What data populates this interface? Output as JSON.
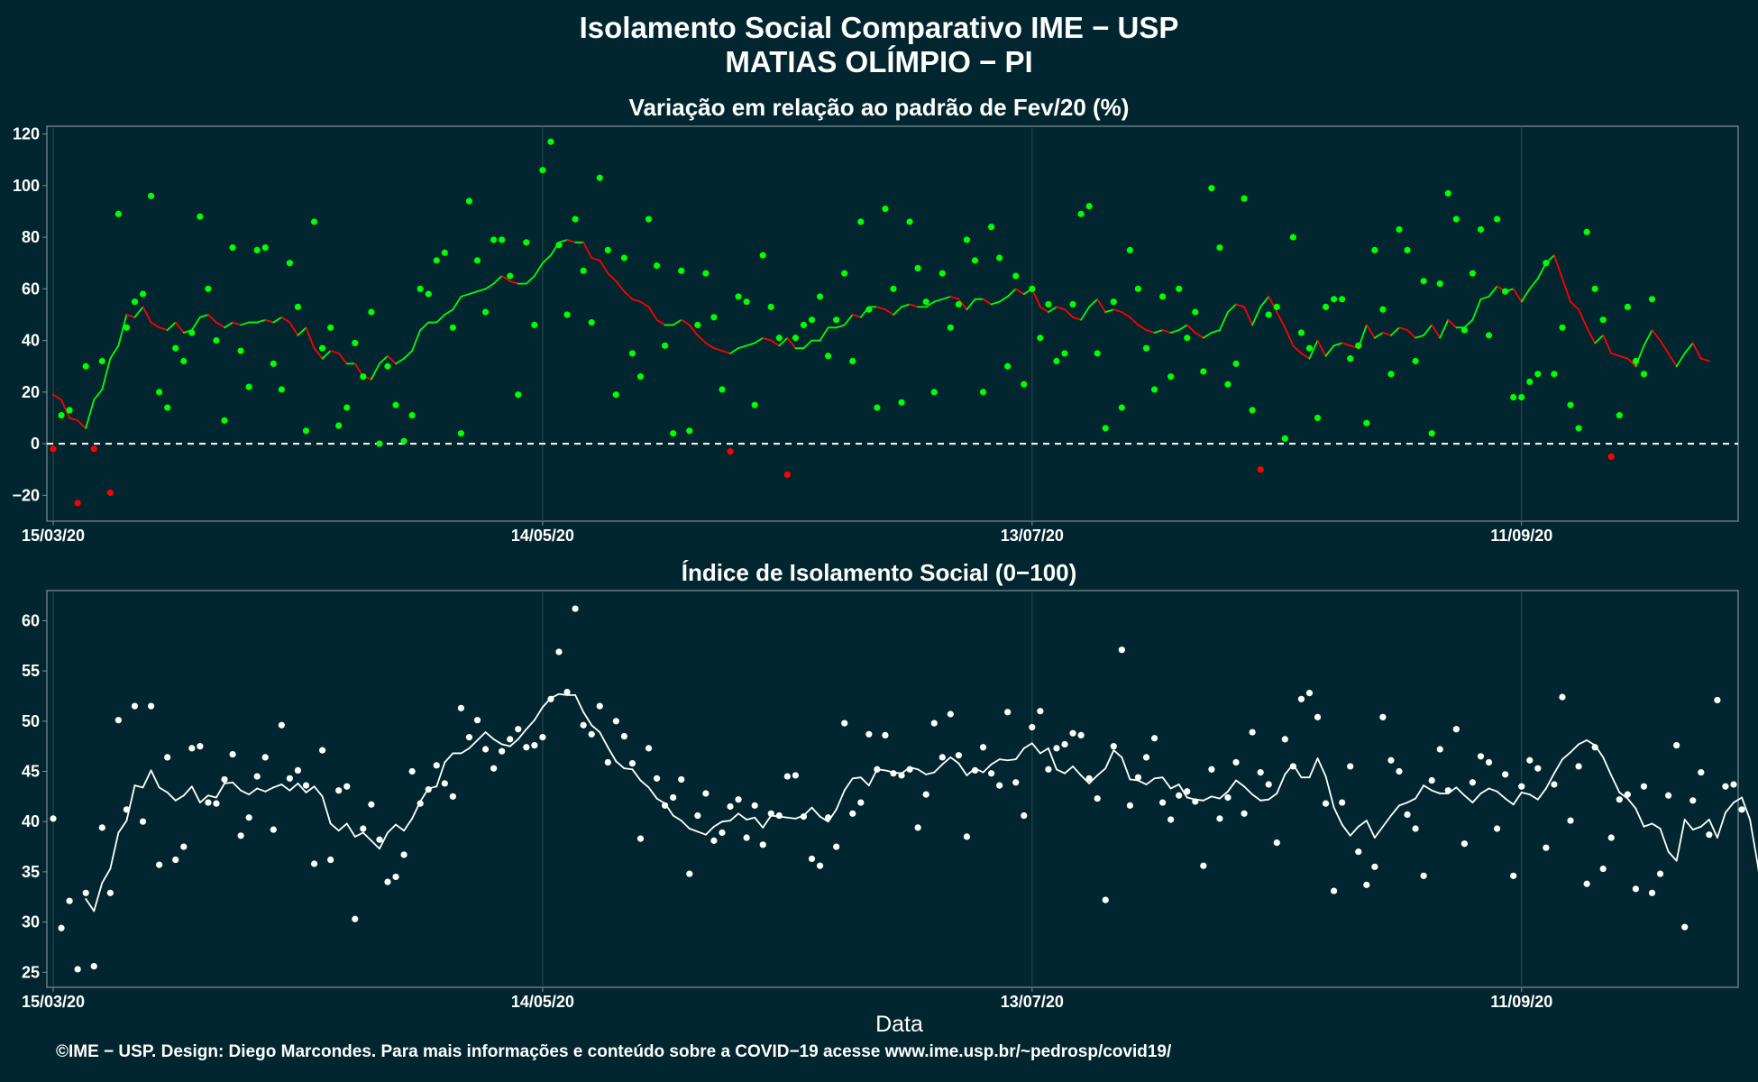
{
  "title_line1": "Isolamento Social Comparativo IME − USP",
  "title_line2": "MATIAS OLÍMPIO − PI",
  "footer": "©IME − USP. Design: Diego Marcondes. Para mais informações e conteúdo sobre a COVID−19 acesse www.ime.usp.br/~pedrosp/covid19/",
  "xlabel": "Data",
  "colors": {
    "background": "#02262f",
    "positive": "#00ff00",
    "negative": "#ff0000",
    "line_white": "#ffffff",
    "grid": "#2a4a52"
  },
  "chart_data": [
    {
      "type": "scatter",
      "title": "Variação em relação ao padrão de Fev/20 (%)",
      "x_tick_labels": [
        "15/03/20",
        "14/05/20",
        "13/07/20",
        "11/09/20"
      ],
      "x_range_days": [
        0,
        206
      ],
      "ylim": [
        -30,
        123
      ],
      "y_ticks": [
        -20,
        0,
        20,
        40,
        60,
        80,
        100,
        120
      ],
      "reference_line": 0,
      "grid": true,
      "series": [
        {
          "label": "daily",
          "values": [
            -2,
            11,
            13,
            -23,
            30,
            -2,
            32,
            -19,
            89,
            45,
            55,
            58,
            96,
            20,
            14,
            37,
            32,
            43,
            88,
            60,
            40,
            9,
            76,
            36,
            22,
            75,
            76,
            31,
            21,
            70,
            53,
            5,
            86,
            37,
            45,
            7,
            14,
            39,
            26,
            51,
            0,
            30,
            15,
            1,
            11,
            60,
            58,
            71,
            74,
            45,
            4,
            94,
            71,
            51,
            79,
            79,
            65,
            19,
            78,
            46,
            106,
            117,
            77,
            50,
            87,
            67,
            47,
            103,
            75,
            19,
            72,
            35,
            26,
            87,
            69,
            38,
            4,
            67,
            5,
            46,
            66,
            49,
            21,
            -3,
            57,
            55,
            15,
            73,
            53,
            41,
            -12,
            41,
            46,
            48,
            57,
            34,
            48,
            66,
            32,
            86,
            52,
            14,
            91,
            60,
            16,
            86,
            68,
            55,
            20,
            66,
            45,
            54,
            79,
            71,
            20,
            84,
            72,
            30,
            65,
            23,
            60,
            41,
            54,
            32,
            35,
            54,
            89,
            92,
            35,
            6,
            55,
            14,
            75,
            60,
            37,
            21,
            57,
            26,
            60,
            41,
            51,
            28,
            99,
            76,
            23,
            31,
            95,
            13,
            -10,
            50,
            53,
            2,
            80,
            43,
            37,
            10,
            53,
            56,
            56,
            33,
            38,
            8,
            75,
            52,
            27,
            83,
            75,
            32,
            63,
            4,
            62,
            97,
            87,
            44,
            66,
            83,
            42,
            87,
            59,
            18,
            18,
            24,
            27,
            70,
            27,
            45,
            15,
            6,
            82,
            60,
            48,
            -5,
            11,
            53,
            32,
            27,
            56
          ]
        },
        {
          "label": "moving average",
          "values": [
            19,
            17,
            10,
            9,
            6,
            17,
            21,
            33,
            38,
            50,
            49,
            53,
            47,
            45,
            44,
            47,
            43,
            44,
            49,
            50,
            47,
            45,
            47,
            46,
            47,
            47,
            48,
            47,
            49,
            47,
            42,
            45,
            37,
            33,
            36,
            35,
            31,
            31,
            26,
            25,
            31,
            34,
            31,
            33,
            36,
            44,
            47,
            47,
            50,
            52,
            57,
            58,
            59,
            60,
            62,
            65,
            63,
            62,
            62,
            65,
            70,
            73,
            78,
            79,
            78,
            78,
            72,
            71,
            66,
            63,
            59,
            56,
            55,
            53,
            48,
            46,
            46,
            48,
            46,
            42,
            39,
            37,
            36,
            35,
            37,
            38,
            39,
            41,
            40,
            38,
            41,
            37,
            37,
            40,
            40,
            45,
            45,
            46,
            50,
            49,
            53,
            53,
            52,
            50,
            53,
            54,
            53,
            53,
            55,
            56,
            57,
            56,
            52,
            56,
            56,
            54,
            55,
            57,
            60,
            58,
            60,
            53,
            51,
            53,
            52,
            49,
            48,
            53,
            56,
            51,
            52,
            51,
            49,
            46,
            44,
            43,
            44,
            43,
            44,
            46,
            43,
            41,
            43,
            44,
            51,
            54,
            53,
            46,
            53,
            57,
            51,
            45,
            38,
            35,
            33,
            40,
            34,
            38,
            39,
            38,
            37,
            46,
            41,
            43,
            42,
            45,
            44,
            41,
            42,
            46,
            41,
            48,
            45,
            45,
            48,
            56,
            57,
            61,
            59,
            60,
            55,
            60,
            64,
            70,
            73,
            64,
            55,
            52,
            45,
            39,
            42,
            35,
            34,
            33,
            30,
            38,
            44,
            40,
            35,
            30,
            35,
            39,
            33,
            32,
            null
          ]
        }
      ]
    },
    {
      "type": "scatter",
      "title": "Índice de Isolamento Social (0−100)",
      "x_tick_labels": [
        "15/03/20",
        "14/05/20",
        "13/07/20",
        "11/09/20"
      ],
      "x_range_days": [
        0,
        206
      ],
      "ylim": [
        23.5,
        63
      ],
      "y_ticks": [
        25,
        30,
        35,
        40,
        45,
        50,
        55,
        60
      ],
      "grid": true,
      "series": [
        {
          "label": "daily",
          "values": [
            40.3,
            29.4,
            32.1,
            25.3,
            32.9,
            25.6,
            39.4,
            32.9,
            50.1,
            41.2,
            51.5,
            40,
            51.5,
            35.7,
            46.4,
            36.2,
            37.5,
            47.3,
            47.5,
            41.9,
            41.8,
            44.2,
            46.7,
            38.6,
            40.4,
            44.5,
            46.4,
            39.2,
            49.6,
            44.3,
            45.1,
            43.6,
            35.8,
            47.1,
            36.2,
            43.1,
            43.5,
            30.3,
            39.3,
            41.7,
            38.2,
            34,
            34.5,
            36.7,
            45,
            41.8,
            43.2,
            45.6,
            43.8,
            42.5,
            51.3,
            48.4,
            50.1,
            47.2,
            45.3,
            47,
            48.2,
            49.2,
            47.4,
            47.6,
            48.4,
            52.2,
            56.9,
            52.9,
            61.2,
            49.6,
            48.7,
            51.5,
            45.9,
            50,
            48.5,
            45.8,
            38.3,
            47.3,
            44.3,
            41.6,
            42.4,
            44.2,
            34.8,
            40.6,
            42.8,
            38.1,
            38.9,
            41.5,
            42.2,
            38.4,
            41.6,
            37.7,
            40.8,
            40.6,
            44.5,
            44.6,
            40.5,
            36.3,
            35.6,
            40.4,
            37.5,
            49.8,
            40.8,
            41.9,
            48.7,
            45.2,
            48.6,
            44.8,
            44.6,
            45.2,
            39.4,
            42.7,
            49.8,
            46.4,
            50.7,
            46.6,
            38.5,
            45.1,
            47.4,
            44.8,
            43.6,
            50.9,
            43.9,
            40.6,
            49.4,
            51,
            45.2,
            47.3,
            47.7,
            48.8,
            48.6,
            44.3,
            42.3,
            32.2,
            47.5,
            57.1,
            41.6,
            44.4,
            46.4,
            48.3,
            41.9,
            40.2,
            42.6,
            43,
            42,
            35.6,
            45.2,
            40.3,
            42.4,
            45.9,
            40.8,
            48.9,
            44.9,
            43.7,
            37.9,
            48.2,
            45.5,
            52.2,
            52.8,
            50.4,
            41.8,
            33.1,
            41.9,
            45.5,
            37,
            33.7,
            35.5,
            50.4,
            46.1,
            45,
            40.7,
            39.3,
            34.6,
            44.1,
            47.2,
            43.1,
            49.2,
            37.8,
            43.9,
            46.5,
            45.9,
            39.3,
            44.7,
            34.6,
            43.5,
            46.1,
            45.3,
            37.4,
            43.7,
            52.4,
            40.1,
            45.5,
            33.8,
            47.4,
            35.3,
            38.4,
            42.2,
            42.7,
            33.3,
            43.5,
            32.9,
            34.8,
            42.6,
            47.6,
            29.5,
            42.1,
            44.9,
            38.7,
            52.1,
            43.5,
            43.7,
            41.2
          ]
        },
        {
          "label": "moving average",
          "values": [
            null,
            null,
            null,
            null,
            32.3,
            31.1,
            33.9,
            35.3,
            38.9,
            40.1,
            43.6,
            43.4,
            45.1,
            43.4,
            42.9,
            42.1,
            42.6,
            43.5,
            41.9,
            42.6,
            42.4,
            43.8,
            43.9,
            43.1,
            42.7,
            43.3,
            43,
            43.4,
            43.7,
            43.1,
            43.8,
            42.9,
            43.5,
            42.5,
            39.8,
            39.1,
            39.8,
            38.5,
            38.9,
            38.1,
            37.3,
            38.9,
            39.7,
            39.1,
            40.3,
            42,
            43.3,
            43.5,
            45.9,
            46.8,
            46.8,
            47.3,
            48.1,
            48.9,
            48.2,
            47.7,
            47.5,
            48.2,
            49.2,
            50.1,
            51.4,
            52.3,
            52.7,
            52.6,
            52.6,
            50.9,
            49.6,
            48.9,
            47.4,
            46,
            45.3,
            45.2,
            44.1,
            43.4,
            42.3,
            41.8,
            40.6,
            40.1,
            39.3,
            39,
            38.7,
            39.5,
            40,
            40.1,
            40.8,
            40.2,
            40.4,
            39.4,
            40.6,
            40.5,
            40.4,
            40.3,
            40.6,
            41.4,
            40.5,
            40,
            41.2,
            43.1,
            44.3,
            44.4,
            43.6,
            45.2,
            45.1,
            44.9,
            44.8,
            45.4,
            45.2,
            44.7,
            44.9,
            45.7,
            46.4,
            45.8,
            44.6,
            45.3,
            44.9,
            45.7,
            46.2,
            46.1,
            46.2,
            47.3,
            47.8,
            46.8,
            47.3,
            45.2,
            44.8,
            45.5,
            44.6,
            43.8,
            44.6,
            45.3,
            47.1,
            46.4,
            44.2,
            44.1,
            43.7,
            44.3,
            44.4,
            43.3,
            43.7,
            42.4,
            42.2,
            42.1,
            42.5,
            42.3,
            43,
            44.1,
            43.5,
            42.7,
            42.1,
            42.2,
            42.8,
            44.7,
            45.7,
            44.4,
            44.4,
            46.3,
            44.5,
            41.4,
            39.7,
            38.6,
            39.5,
            40.1,
            38.4,
            39.5,
            40.6,
            41.6,
            41.9,
            42.3,
            43.6,
            43.1,
            42.8,
            42.8,
            43.4,
            42.6,
            41.9,
            42.8,
            43.3,
            43,
            42.3,
            41.7,
            42.9,
            42.7,
            42.2,
            43.3,
            44.8,
            46.2,
            46.9,
            47.7,
            48.1,
            47.6,
            46.4,
            44.6,
            42.9,
            42.3,
            41.3,
            39.5,
            39.8,
            39.3,
            37,
            36.1,
            40.2,
            39.2,
            39.5,
            40.2,
            38.4,
            40.9,
            41.9,
            42.4,
            40.2,
            35.5,
            28.8
          ]
        }
      ]
    }
  ]
}
